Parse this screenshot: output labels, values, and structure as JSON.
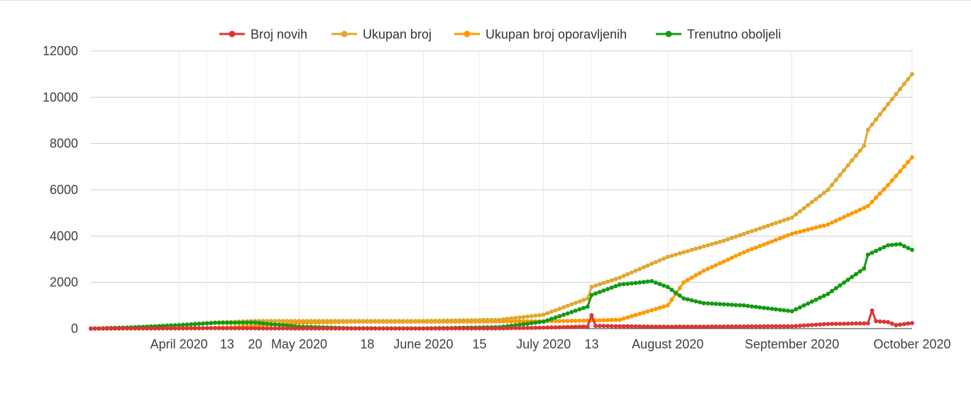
{
  "chart_data": {
    "type": "line",
    "legend_position": "top",
    "grid": true,
    "ylim": [
      0,
      12000
    ],
    "y_ticks": [
      0,
      2000,
      4000,
      6000,
      8000,
      10000,
      12000
    ],
    "x_start": "2020-03-10",
    "x_end": "2020-10-01",
    "x_ticks": [
      {
        "date": "2020-04-01",
        "label": "April 2020",
        "major": true
      },
      {
        "date": "2020-04-08",
        "label": "",
        "major": false
      },
      {
        "date": "2020-04-13",
        "label": "13",
        "major": false
      },
      {
        "date": "2020-04-20",
        "label": "20",
        "major": false
      },
      {
        "date": "2020-05-01",
        "label": "May 2020",
        "major": true
      },
      {
        "date": "2020-05-18",
        "label": "18",
        "major": false
      },
      {
        "date": "2020-06-01",
        "label": "June 2020",
        "major": true
      },
      {
        "date": "2020-06-15",
        "label": "15",
        "major": false
      },
      {
        "date": "2020-07-01",
        "label": "July 2020",
        "major": true
      },
      {
        "date": "2020-07-13",
        "label": "13",
        "major": false
      },
      {
        "date": "2020-08-01",
        "label": "August 2020",
        "major": true
      },
      {
        "date": "2020-09-01",
        "label": "September 2020",
        "major": true
      },
      {
        "date": "2020-10-01",
        "label": "October 2020",
        "major": true
      }
    ],
    "series": [
      {
        "name": "Broj novih",
        "color": "#dc3535",
        "points": [
          [
            "2020-03-10",
            0
          ],
          [
            "2020-03-25",
            10
          ],
          [
            "2020-04-05",
            20
          ],
          [
            "2020-04-15",
            15
          ],
          [
            "2020-05-01",
            3
          ],
          [
            "2020-06-01",
            2
          ],
          [
            "2020-06-20",
            10
          ],
          [
            "2020-07-01",
            40
          ],
          [
            "2020-07-12",
            90
          ],
          [
            "2020-07-13",
            580
          ],
          [
            "2020-07-14",
            120
          ],
          [
            "2020-07-20",
            100
          ],
          [
            "2020-08-01",
            80
          ],
          [
            "2020-08-15",
            90
          ],
          [
            "2020-09-01",
            100
          ],
          [
            "2020-09-10",
            200
          ],
          [
            "2020-09-20",
            230
          ],
          [
            "2020-09-21",
            780
          ],
          [
            "2020-09-22",
            320
          ],
          [
            "2020-09-25",
            280
          ],
          [
            "2020-09-27",
            150
          ],
          [
            "2020-10-01",
            240
          ]
        ]
      },
      {
        "name": "Ukupan broj",
        "color": "#e0a82e",
        "points": [
          [
            "2020-03-10",
            0
          ],
          [
            "2020-03-20",
            50
          ],
          [
            "2020-04-01",
            150
          ],
          [
            "2020-04-10",
            260
          ],
          [
            "2020-04-20",
            330
          ],
          [
            "2020-05-01",
            330
          ],
          [
            "2020-06-01",
            330
          ],
          [
            "2020-06-20",
            380
          ],
          [
            "2020-07-01",
            600
          ],
          [
            "2020-07-12",
            1300
          ],
          [
            "2020-07-13",
            1800
          ],
          [
            "2020-07-20",
            2200
          ],
          [
            "2020-08-01",
            3100
          ],
          [
            "2020-08-15",
            3800
          ],
          [
            "2020-09-01",
            4800
          ],
          [
            "2020-09-10",
            6000
          ],
          [
            "2020-09-19",
            7900
          ],
          [
            "2020-09-20",
            8600
          ],
          [
            "2020-09-25",
            9700
          ],
          [
            "2020-10-01",
            11000
          ]
        ]
      },
      {
        "name": "Ukupan broj oporavljenih",
        "color": "#ff9900",
        "points": [
          [
            "2020-03-10",
            0
          ],
          [
            "2020-04-05",
            5
          ],
          [
            "2020-04-15",
            60
          ],
          [
            "2020-05-01",
            250
          ],
          [
            "2020-05-15",
            300
          ],
          [
            "2020-06-01",
            300
          ],
          [
            "2020-06-20",
            310
          ],
          [
            "2020-07-01",
            320
          ],
          [
            "2020-07-10",
            340
          ],
          [
            "2020-07-20",
            380
          ],
          [
            "2020-08-01",
            1000
          ],
          [
            "2020-08-05",
            2000
          ],
          [
            "2020-08-10",
            2500
          ],
          [
            "2020-08-20",
            3300
          ],
          [
            "2020-09-01",
            4100
          ],
          [
            "2020-09-10",
            4500
          ],
          [
            "2020-09-20",
            5300
          ],
          [
            "2020-09-25",
            6200
          ],
          [
            "2020-10-01",
            7400
          ]
        ]
      },
      {
        "name": "Trenutno oboljeli",
        "color": "#139a12",
        "points": [
          [
            "2020-03-10",
            0
          ],
          [
            "2020-03-20",
            50
          ],
          [
            "2020-04-01",
            150
          ],
          [
            "2020-04-10",
            250
          ],
          [
            "2020-04-20",
            260
          ],
          [
            "2020-05-01",
            80
          ],
          [
            "2020-05-15",
            15
          ],
          [
            "2020-06-01",
            10
          ],
          [
            "2020-06-20",
            60
          ],
          [
            "2020-07-01",
            300
          ],
          [
            "2020-07-12",
            950
          ],
          [
            "2020-07-13",
            1450
          ],
          [
            "2020-07-20",
            1900
          ],
          [
            "2020-07-28",
            2050
          ],
          [
            "2020-08-01",
            1800
          ],
          [
            "2020-08-05",
            1300
          ],
          [
            "2020-08-10",
            1100
          ],
          [
            "2020-08-20",
            1000
          ],
          [
            "2020-09-01",
            750
          ],
          [
            "2020-09-10",
            1500
          ],
          [
            "2020-09-19",
            2600
          ],
          [
            "2020-09-20",
            3200
          ],
          [
            "2020-09-25",
            3600
          ],
          [
            "2020-09-28",
            3650
          ],
          [
            "2020-10-01",
            3400
          ]
        ]
      }
    ]
  }
}
